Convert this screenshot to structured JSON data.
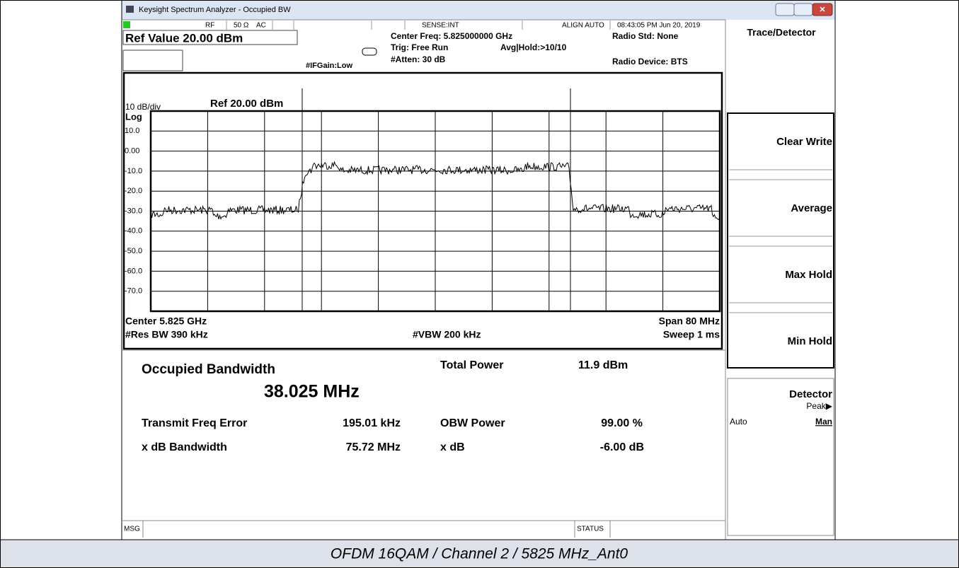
{
  "window": {
    "title": "Keysight Spectrum Analyzer - Occupied BW"
  },
  "status_bar": {
    "rf": "RF",
    "impedance": "50 Ω",
    "coupling": "AC",
    "sense": "SENSE:INT",
    "align": "ALIGN AUTO",
    "timestamp": "08:43:05 PM Jun 20, 2019"
  },
  "settings": {
    "ref_value": "Ref Value 20.00 dBm",
    "center_freq": "Center Freq: 5.825000000 GHz",
    "trig": "Trig: Free Run",
    "avg_hold": "Avg|Hold:>10/10",
    "atten": "#Atten: 30 dB",
    "if_gain": "#IFGain:Low",
    "radio_std": "Radio Std: None",
    "radio_device": "Radio Device: BTS"
  },
  "graph": {
    "scale": "10 dB/div",
    "ref": "Ref 20.00 dBm",
    "scale_type": "Log",
    "y_labels": [
      "10.0",
      "0.00",
      "-10.0",
      "-20.0",
      "-30.0",
      "-40.0",
      "-50.0",
      "-60.0",
      "-70.0"
    ],
    "center": "Center 5.825 GHz",
    "res_bw": "#Res BW 390 kHz",
    "vbw": "#VBW 200 kHz",
    "span": "Span 80 MHz",
    "sweep": "Sweep 1 ms"
  },
  "results": {
    "obw_label": "Occupied Bandwidth",
    "obw_value": "38.025 MHz",
    "total_power_label": "Total Power",
    "total_power_value": "11.9 dBm",
    "freq_error_label": "Transmit Freq Error",
    "freq_error_value": "195.01 kHz",
    "obw_power_label": "OBW Power",
    "obw_power_value": "99.00 %",
    "xdb_bw_label": "x dB Bandwidth",
    "xdb_bw_value": "75.72 MHz",
    "xdb_label": "x dB",
    "xdb_value": "-6.00 dB"
  },
  "menu": {
    "title": "Trace/Detector",
    "buttons": [
      "Clear Write",
      "Average",
      "Max Hold",
      "Min Hold"
    ],
    "detector": {
      "label": "Detector",
      "value": "Peak▶",
      "auto": "Auto",
      "man": "Man"
    }
  },
  "footer": {
    "msg": "MSG",
    "status": "STATUS"
  },
  "caption": "OFDM 16QAM / Channel 2 / 5825 MHz_Ant0"
}
